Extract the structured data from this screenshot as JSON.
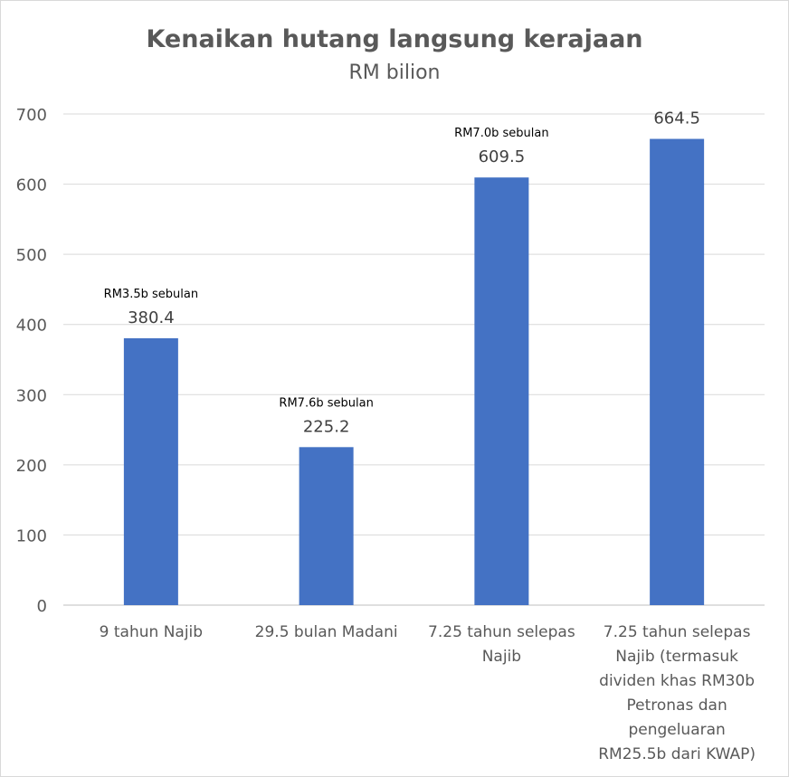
{
  "chart_data": {
    "type": "bar",
    "title": "Kenaikan hutang langsung kerajaan",
    "subtitle": "RM bilion",
    "xlabel": "",
    "ylabel": "",
    "ylim": [
      0,
      700
    ],
    "yticks": [
      0,
      100,
      200,
      300,
      400,
      500,
      600,
      700
    ],
    "grid": true,
    "legend": "none",
    "bar_color": "#4472C4",
    "categories": [
      [
        "9 tahun Najib"
      ],
      [
        "29.5 bulan Madani"
      ],
      [
        "7.25 tahun selepas",
        "Najib"
      ],
      [
        "7.25 tahun selepas",
        "Najib (termasuk",
        "dividen khas RM30b",
        "Petronas dan",
        "pengeluaran",
        "RM25.5b dari KWAP)"
      ]
    ],
    "values": [
      380.4,
      225.2,
      609.5,
      664.5
    ],
    "value_labels": [
      "380.4",
      "225.2",
      "609.5",
      "664.5"
    ],
    "annotations": [
      "RM3.5b sebulan",
      "RM7.6b sebulan",
      "RM7.0b sebulan",
      ""
    ]
  }
}
